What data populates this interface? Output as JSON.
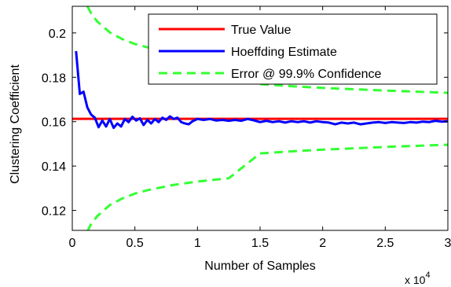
{
  "chart_data": {
    "type": "line",
    "title": "",
    "xlabel": "Number of Samples",
    "ylabel": "Clustering Coefficient",
    "x_multiplier": "x 10",
    "x_multiplier_exponent": "4",
    "xlim": [
      0,
      3
    ],
    "ylim": [
      0.111,
      0.212
    ],
    "xticks": [
      0,
      0.5,
      1,
      1.5,
      2,
      2.5,
      3
    ],
    "xtick_labels": [
      "0",
      "0.5",
      "1",
      "1.5",
      "2",
      "2.5",
      "3"
    ],
    "yticks": [
      0.12,
      0.14,
      0.16,
      0.18,
      0.2
    ],
    "ytick_labels": [
      "0.12",
      "0.14",
      "0.16",
      "0.18",
      "0.2"
    ],
    "grid": false,
    "legend_position": "top-right",
    "colors": {
      "true_value": "#ff0000",
      "estimate": "#0000ff",
      "error": "#33ff33"
    },
    "series": [
      {
        "name": "True Value",
        "style": "solid",
        "x": [
          0,
          3
        ],
        "y": [
          0.1613,
          0.1613
        ]
      },
      {
        "name": "Hoeffding Estimate",
        "style": "solid",
        "x": [
          0.03,
          0.06,
          0.09,
          0.12,
          0.15,
          0.18,
          0.21,
          0.24,
          0.27,
          0.3,
          0.33,
          0.36,
          0.39,
          0.42,
          0.45,
          0.48,
          0.51,
          0.54,
          0.57,
          0.6,
          0.63,
          0.66,
          0.69,
          0.72,
          0.75,
          0.78,
          0.81,
          0.84,
          0.87,
          0.9,
          0.93,
          0.96,
          1.0,
          1.05,
          1.1,
          1.15,
          1.2,
          1.25,
          1.3,
          1.35,
          1.4,
          1.45,
          1.5,
          1.55,
          1.6,
          1.65,
          1.7,
          1.75,
          1.8,
          1.85,
          1.9,
          1.95,
          2.0,
          2.05,
          2.1,
          2.15,
          2.2,
          2.25,
          2.3,
          2.35,
          2.4,
          2.45,
          2.5,
          2.55,
          2.6,
          2.65,
          2.7,
          2.75,
          2.8,
          2.85,
          2.9,
          2.95,
          3.0
        ],
        "y": [
          0.1918,
          0.1725,
          0.1735,
          0.1665,
          0.1632,
          0.1618,
          0.1575,
          0.1605,
          0.1578,
          0.1612,
          0.1572,
          0.1592,
          0.1578,
          0.1612,
          0.1598,
          0.1622,
          0.1605,
          0.1615,
          0.1585,
          0.1608,
          0.1592,
          0.1612,
          0.1598,
          0.1618,
          0.1608,
          0.1624,
          0.1612,
          0.1618,
          0.1598,
          0.1592,
          0.1588,
          0.1602,
          0.1612,
          0.1608,
          0.1612,
          0.1605,
          0.1608,
          0.1604,
          0.1608,
          0.1604,
          0.1612,
          0.1606,
          0.1598,
          0.1604,
          0.1598,
          0.1602,
          0.1596,
          0.1602,
          0.1598,
          0.1602,
          0.1596,
          0.1602,
          0.1598,
          0.1596,
          0.1588,
          0.1596,
          0.1592,
          0.1596,
          0.1588,
          0.1592,
          0.1596,
          0.1598,
          0.1594,
          0.1598,
          0.1596,
          0.1594,
          0.1598,
          0.1596,
          0.16,
          0.1598,
          0.1604,
          0.16,
          0.1602
        ]
      },
      {
        "name": "Error @ 99.9% Confidence",
        "style": "dashed",
        "x": [
          0.12,
          0.15,
          0.2,
          0.3,
          0.4,
          0.5,
          0.6,
          0.8,
          1.0,
          1.25,
          1.5,
          1.75,
          2.0,
          2.25,
          2.5,
          2.75,
          3.0
        ],
        "y_upper": [
          0.2121,
          0.2088,
          0.2051,
          0.2002,
          0.1972,
          0.195,
          0.1935,
          0.1912,
          0.1896,
          0.1881,
          0.1769,
          0.176,
          0.1752,
          0.1746,
          0.174,
          0.1735,
          0.173
        ],
        "y_lower": [
          0.1105,
          0.1138,
          0.1175,
          0.1224,
          0.1254,
          0.1276,
          0.1291,
          0.1314,
          0.133,
          0.1345,
          0.1457,
          0.1466,
          0.1474,
          0.148,
          0.1486,
          0.1491,
          0.1496
        ]
      }
    ]
  }
}
